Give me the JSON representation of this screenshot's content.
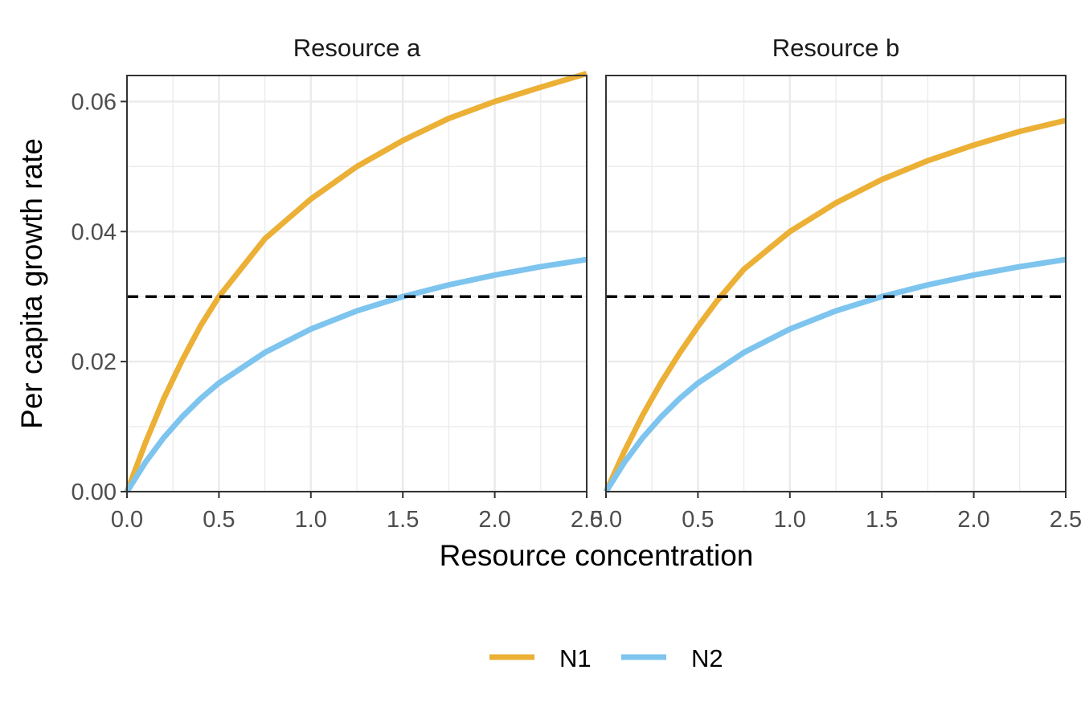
{
  "chart_data": {
    "type": "line",
    "xlabel": "Resource concentration",
    "ylabel": "Per capita growth rate",
    "xlim": [
      0,
      2.5
    ],
    "ylim": [
      0,
      0.064
    ],
    "x_ticks": [
      0,
      0.5,
      1,
      1.5,
      2,
      2.5
    ],
    "x_tick_labels": [
      "0.0",
      "0.5",
      "1.0",
      "1.5",
      "2.0",
      "2.5"
    ],
    "y_ticks": [
      0,
      0.02,
      0.04,
      0.06
    ],
    "y_tick_labels": [
      "0.00",
      "0.02",
      "0.04",
      "0.06"
    ],
    "grid": true,
    "legend_position": "bottom",
    "threshold": {
      "y": 0.03,
      "style": "dashed",
      "color": "#000000"
    },
    "series_styles": [
      {
        "name": "N1",
        "color": "#EBB035"
      },
      {
        "name": "N2",
        "color": "#7DC4EE"
      }
    ],
    "facets": [
      {
        "title": "Resource a",
        "series": [
          {
            "name": "N1",
            "x": [
              0,
              0.1,
              0.2,
              0.3,
              0.4,
              0.5,
              0.75,
              1.0,
              1.25,
              1.5,
              1.75,
              2.0,
              2.25,
              2.5
            ],
            "y": [
              0,
              0.0075,
              0.0143,
              0.0202,
              0.0255,
              0.03,
              0.0389,
              0.045,
              0.05,
              0.054,
              0.0574,
              0.06,
              0.0622,
              0.0643
            ]
          },
          {
            "name": "N2",
            "x": [
              0,
              0.1,
              0.2,
              0.3,
              0.4,
              0.5,
              0.75,
              1.0,
              1.25,
              1.5,
              1.75,
              2.0,
              2.25,
              2.5
            ],
            "y": [
              0,
              0.0045,
              0.0083,
              0.0115,
              0.0143,
              0.0167,
              0.0214,
              0.025,
              0.0278,
              0.03,
              0.0318,
              0.0333,
              0.0346,
              0.0357
            ]
          }
        ]
      },
      {
        "title": "Resource b",
        "series": [
          {
            "name": "N1",
            "x": [
              0,
              0.1,
              0.2,
              0.3,
              0.4,
              0.5,
              0.6,
              0.75,
              1.0,
              1.25,
              1.5,
              1.75,
              2.0,
              2.25,
              2.5
            ],
            "y": [
              0,
              0.0062,
              0.0118,
              0.0168,
              0.0213,
              0.0254,
              0.0292,
              0.0342,
              0.04,
              0.0444,
              0.048,
              0.0509,
              0.0533,
              0.0554,
              0.0571
            ]
          },
          {
            "name": "N2",
            "x": [
              0,
              0.1,
              0.2,
              0.3,
              0.4,
              0.5,
              0.75,
              1.0,
              1.25,
              1.5,
              1.75,
              2.0,
              2.25,
              2.5
            ],
            "y": [
              0,
              0.0045,
              0.0083,
              0.0115,
              0.0143,
              0.0167,
              0.0214,
              0.025,
              0.0278,
              0.03,
              0.0318,
              0.0333,
              0.0346,
              0.0357
            ]
          }
        ]
      }
    ]
  }
}
